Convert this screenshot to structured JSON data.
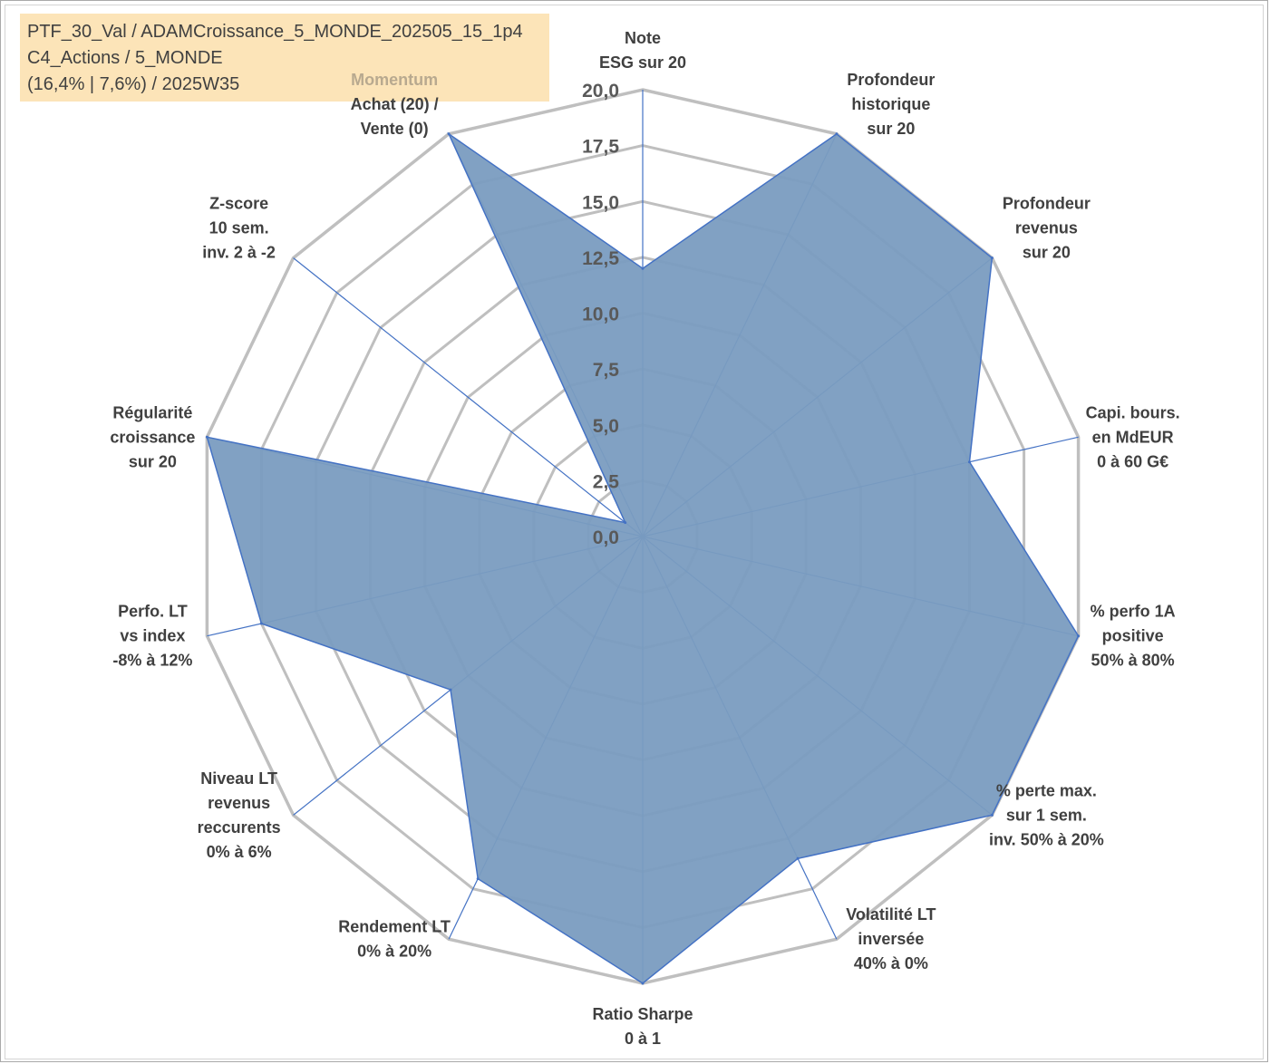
{
  "info": {
    "line1": "PTF_30_Val / ADAMCroissance_5_MONDE_202505_15_1p4",
    "line2": "C4_Actions / 5_MONDE",
    "line3": "(16,4% | 7,6%) / 2025W35"
  },
  "colors": {
    "fill": "#7a9cc0",
    "stroke": "#4472c4",
    "grid": "#bfbfbf",
    "spoke": "#4472c4",
    "label": "#404040",
    "highlight_label": "#b8a98f",
    "info_box": "#fce4b8"
  },
  "chart_data": {
    "type": "radar",
    "rmin": 0,
    "rmax": 20,
    "tick_step": 2.5,
    "tick_labels": [
      "0,0",
      "2,5",
      "5,0",
      "7,5",
      "10,0",
      "12,5",
      "15,0",
      "17,5",
      "20,0"
    ],
    "axes": [
      {
        "lines": [
          "Note",
          "ESG sur 20"
        ],
        "value": 12.0
      },
      {
        "lines": [
          "Profondeur",
          "historique",
          "sur 20"
        ],
        "value": 20.0
      },
      {
        "lines": [
          "Profondeur",
          "revenus",
          "sur 20"
        ],
        "value": 20.0
      },
      {
        "lines": [
          "Capi. bours.",
          "en MdEUR",
          "0 à 60 G€"
        ],
        "value": 15.0
      },
      {
        "lines": [
          "% perfo 1A",
          "positive",
          "50% à 80%"
        ],
        "value": 20.0
      },
      {
        "lines": [
          "% perte max.",
          "sur 1 sem.",
          "inv. 50% à 20%"
        ],
        "value": 20.0
      },
      {
        "lines": [
          "Volatilité LT",
          "inversée",
          "40% à 0%"
        ],
        "value": 16.0
      },
      {
        "lines": [
          "Ratio Sharpe",
          "0 à 1"
        ],
        "value": 20.0
      },
      {
        "lines": [
          "Rendement LT",
          "0% à 20%"
        ],
        "value": 17.0
      },
      {
        "lines": [
          "Niveau LT",
          "revenus",
          "reccurents",
          "0% à 6%"
        ],
        "value": 11.0
      },
      {
        "lines": [
          "Perfo. LT",
          "vs index",
          "-8% à 12%"
        ],
        "value": 17.5
      },
      {
        "lines": [
          "Régularité",
          "croissance",
          "sur 20"
        ],
        "value": 20.0
      },
      {
        "lines": [
          "Z-score",
          "10 sem.",
          "inv. 2 à -2"
        ],
        "value": 1.0
      },
      {
        "lines": [
          "Momentum",
          "Achat (20) /",
          "Vente (0)"
        ],
        "value": 20.0,
        "first_line_highlight": true
      }
    ]
  }
}
